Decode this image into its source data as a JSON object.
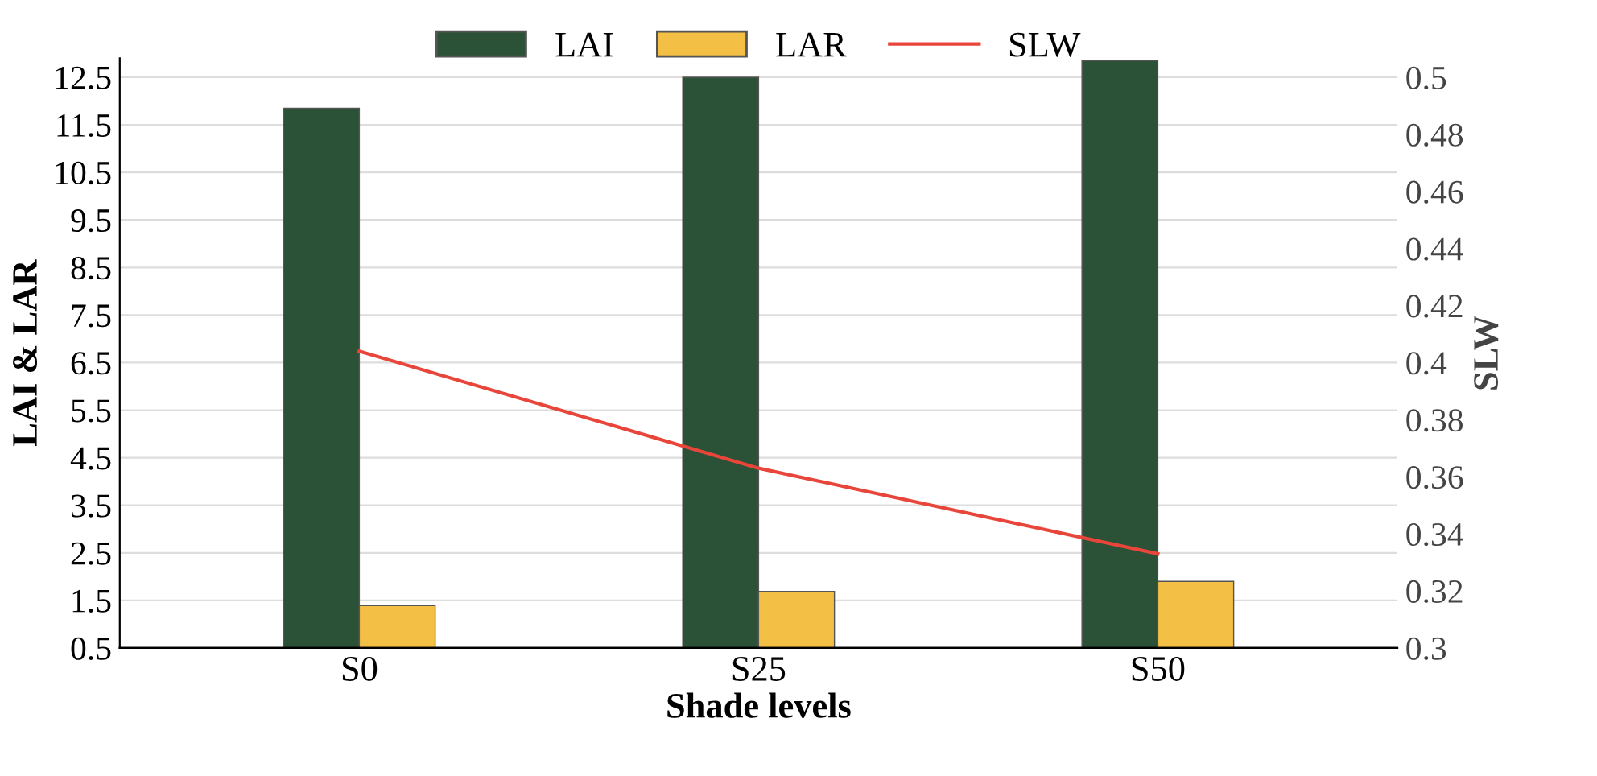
{
  "chart_data": {
    "type": "bar",
    "xlabel": "Shade levels",
    "ylabel": "LAI & LAR",
    "y2label": "SLW",
    "categories": [
      "S0",
      "S25",
      "S50"
    ],
    "series": [
      {
        "name": "LAI",
        "color": "#2b5236",
        "values": [
          11.85,
          12.5,
          12.85
        ]
      },
      {
        "name": "LAR",
        "color": "#f4bf45",
        "values": [
          1.39,
          1.69,
          1.9
        ]
      },
      {
        "name": "SLW",
        "type": "line",
        "axis": "y2",
        "color": "#e8463a",
        "values": [
          0.404,
          0.363,
          0.333
        ]
      }
    ],
    "ylim": [
      0.5,
      12.9
    ],
    "yticks": [
      0.5,
      1.5,
      2.5,
      3.5,
      4.5,
      5.5,
      6.5,
      7.5,
      8.5,
      9.5,
      10.5,
      11.5,
      12.5
    ],
    "y2lim": [
      0.3,
      0.5067
    ],
    "y2ticks": [
      0.3,
      0.32,
      0.34,
      0.36,
      0.38,
      0.4,
      0.42,
      0.44,
      0.46,
      0.48,
      0.5
    ],
    "grid": "y",
    "legend": "top",
    "marker": "none",
    "line_style": "solid"
  }
}
